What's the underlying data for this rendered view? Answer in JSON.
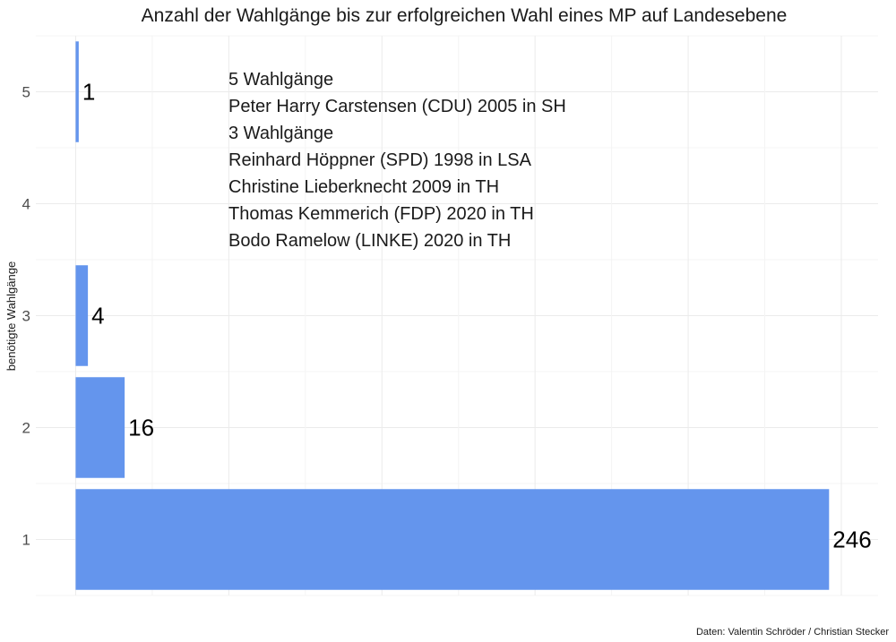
{
  "chart_data": {
    "type": "bar",
    "orientation": "horizontal",
    "title": "Anzahl der Wahlgänge bis zur erfolgreichen Wahl eines MP auf Landesebene",
    "xlabel": "",
    "ylabel": "benötigte Wahlgänge",
    "categories": [
      "1",
      "2",
      "3",
      "4",
      "5"
    ],
    "values": [
      246,
      16,
      4,
      0,
      1
    ],
    "data_labels": [
      "246",
      "16",
      "4",
      "",
      "1"
    ],
    "xlim": [
      -13,
      262
    ],
    "grid": true,
    "bar_color": "#6495ED",
    "annotation_lines": [
      "5 Wahlgänge",
      "Peter Harry Carstensen (CDU) 2005 in SH",
      "3 Wahlgänge",
      "Reinhard Höppner (SPD) 1998 in LSA",
      "Christine Lieberknecht 2009 in TH",
      "Thomas Kemmerich (FDP) 2020 in TH",
      "Bodo Ramelow (LINKE) 2020 in TH"
    ],
    "caption": "Daten: Valentin Schröder / Christian Stecker"
  }
}
